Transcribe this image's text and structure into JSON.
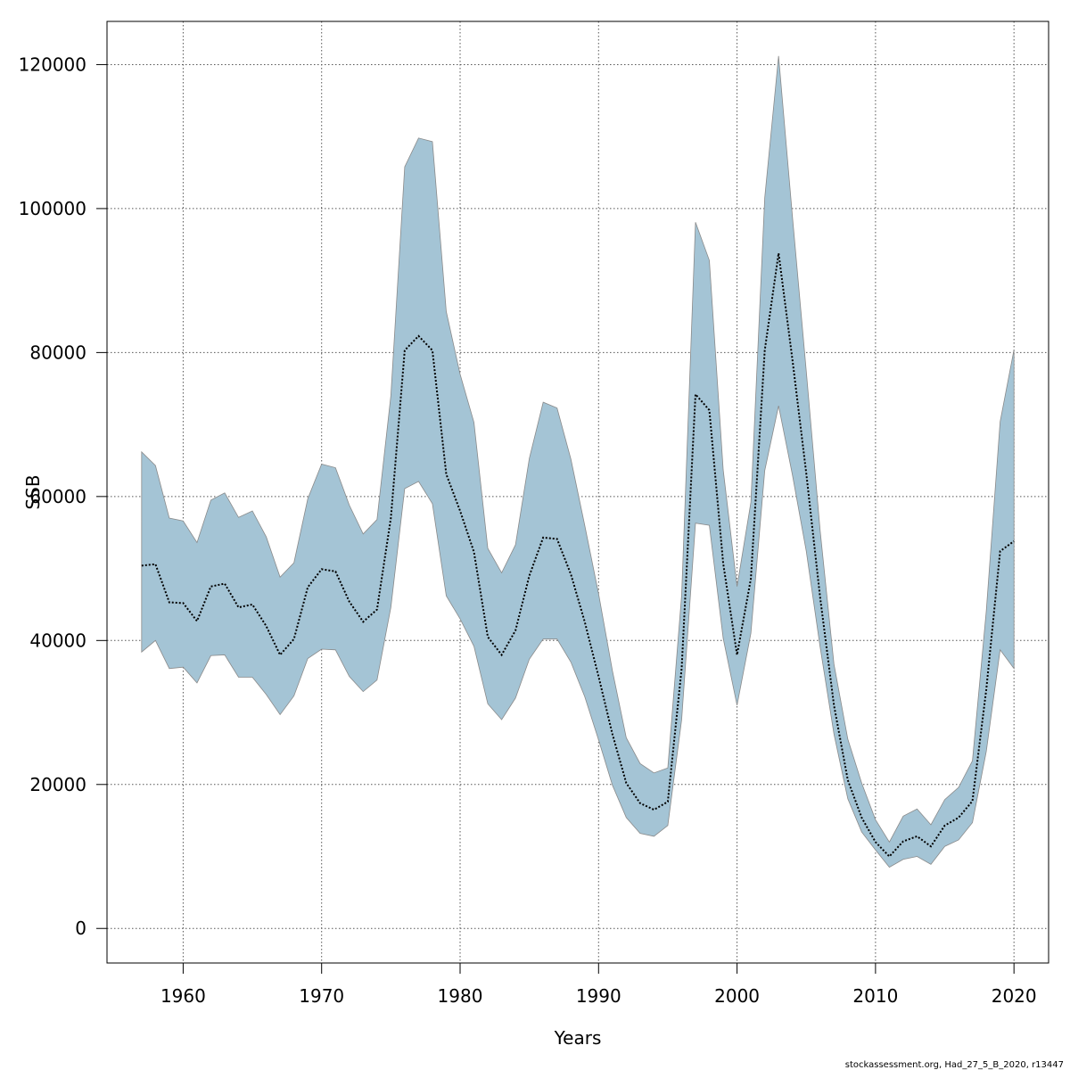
{
  "chart_data": {
    "type": "area",
    "title": "",
    "xlabel": "Years",
    "ylabel": "SSB",
    "footer": "stockassessment.org, Had_27_5_B_2020, r13447",
    "xlim": [
      1954.5,
      2022.5
    ],
    "ylim": [
      -4800,
      126000
    ],
    "x_ticks": [
      1960,
      1970,
      1980,
      1990,
      2000,
      2010,
      2020
    ],
    "y_ticks": [
      0,
      20000,
      40000,
      60000,
      80000,
      100000,
      120000
    ],
    "x_tick_labels": [
      "1960",
      "1970",
      "1980",
      "1990",
      "2000",
      "2010",
      "2020"
    ],
    "y_tick_labels": [
      "0",
      "20000",
      "40000",
      "60000",
      "80000",
      "100000",
      "120000"
    ],
    "grid": true,
    "colors": {
      "band": "#a4c4d5",
      "band_edge": "#8a8a8a",
      "estimate": "#000000",
      "grid": "#555555"
    },
    "x": [
      1957,
      1958,
      1959,
      1960,
      1961,
      1962,
      1963,
      1964,
      1965,
      1966,
      1967,
      1968,
      1969,
      1970,
      1971,
      1972,
      1973,
      1974,
      1975,
      1976,
      1977,
      1978,
      1979,
      1980,
      1981,
      1982,
      1983,
      1984,
      1985,
      1986,
      1987,
      1988,
      1989,
      1990,
      1991,
      1992,
      1993,
      1994,
      1995,
      1996,
      1997,
      1998,
      1999,
      2000,
      2001,
      2002,
      2003,
      2004,
      2005,
      2006,
      2007,
      2008,
      2009,
      2010,
      2011,
      2012,
      2013,
      2014,
      2015,
      2016,
      2017,
      2018,
      2019,
      2020
    ],
    "series": [
      {
        "type": "line",
        "style": "dotted",
        "values": [
          50400,
          50600,
          45300,
          45200,
          42700,
          47500,
          47900,
          44600,
          45000,
          42000,
          38000,
          40200,
          47400,
          49900,
          49600,
          45400,
          42600,
          44300,
          57000,
          80300,
          82300,
          80300,
          63100,
          58000,
          52300,
          40500,
          38000,
          41400,
          49000,
          54300,
          54100,
          49200,
          42600,
          35000,
          27000,
          20200,
          17400,
          16500,
          17600,
          36100,
          74200,
          72000,
          50700,
          38000,
          48600,
          80300,
          93800,
          79000,
          63200,
          46000,
          31000,
          20600,
          15400,
          12000,
          10000,
          12100,
          12800,
          11400,
          14300,
          15400,
          17700,
          33200,
          52400,
          53800
        ]
      },
      {
        "type": "band",
        "lower": [
          38400,
          40000,
          36100,
          36300,
          34100,
          37900,
          38000,
          34900,
          34900,
          32500,
          29700,
          32300,
          37500,
          38800,
          38700,
          35000,
          32900,
          34500,
          44600,
          61100,
          62100,
          59000,
          46200,
          43000,
          39200,
          31200,
          29000,
          32000,
          37400,
          40200,
          40200,
          37000,
          32200,
          26200,
          19900,
          15400,
          13200,
          12800,
          14300,
          29000,
          56300,
          56000,
          40300,
          31000,
          41000,
          63600,
          72600,
          63000,
          52400,
          39100,
          27000,
          18000,
          13400,
          10900,
          8500,
          9600,
          10000,
          8900,
          11400,
          12300,
          14700,
          24600,
          38700,
          36100
        ],
        "upper": [
          66200,
          64300,
          57000,
          56600,
          53600,
          59500,
          60500,
          57100,
          58000,
          54400,
          48800,
          50800,
          59700,
          64500,
          64000,
          58800,
          54800,
          56800,
          74000,
          105800,
          109800,
          109300,
          85700,
          77000,
          70300,
          52800,
          49400,
          53300,
          65300,
          73100,
          72300,
          65200,
          56000,
          46500,
          35800,
          26500,
          22900,
          21600,
          22300,
          46300,
          98100,
          92800,
          63700,
          47500,
          59200,
          101500,
          121200,
          98900,
          77400,
          55300,
          36700,
          26300,
          20200,
          15100,
          12000,
          15600,
          16600,
          14400,
          17900,
          19600,
          23300,
          44100,
          70400,
          80400
        ]
      }
    ]
  }
}
